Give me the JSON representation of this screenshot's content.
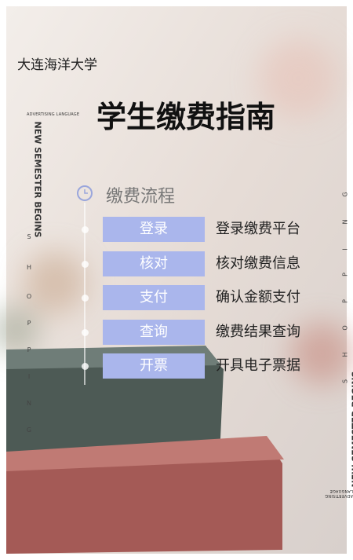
{
  "header": {
    "school": "大连海洋大学",
    "title": "学生缴费指南"
  },
  "decor": {
    "tag": "ADVERTISING LANGUAGE",
    "vertical": "NEW SEMESTER BEGINS",
    "letters": [
      "S",
      "H",
      "O",
      "P",
      "P",
      "I",
      "N",
      "G"
    ]
  },
  "flow": {
    "heading": "缴费流程",
    "steps": [
      {
        "button": "登录",
        "text": "登录缴费平台"
      },
      {
        "button": "核对",
        "text": "核对缴费信息"
      },
      {
        "button": "支付",
        "text": "确认金额支付"
      },
      {
        "button": "查询",
        "text": "缴费结果查询"
      },
      {
        "button": "开票",
        "text": "开具电子票据"
      }
    ]
  }
}
